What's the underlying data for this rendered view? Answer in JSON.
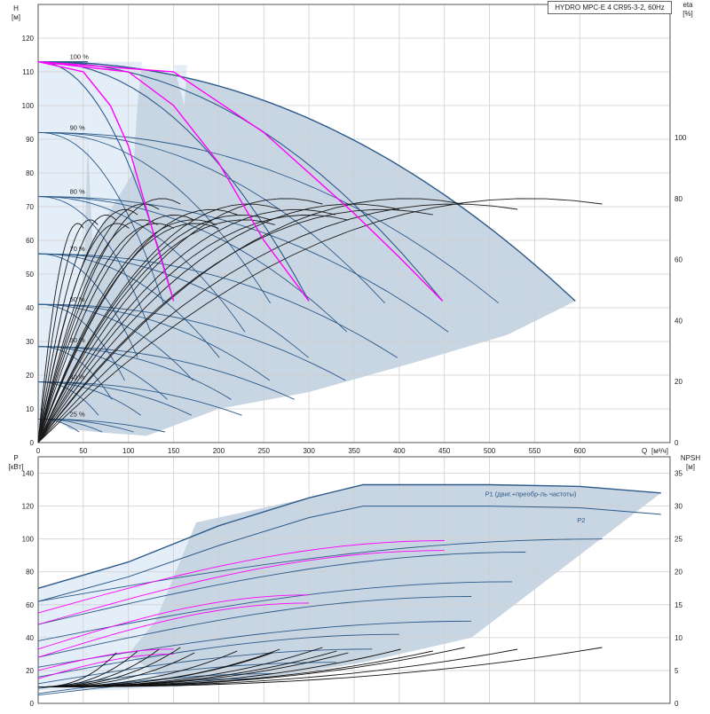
{
  "chart_data": [
    {
      "type": "line",
      "panel": "head-efficiency",
      "title": "HYDRO MPC-E 4 CR95-3-2, 60Hz",
      "ylabel_left": "H",
      "ylabel_left_unit": "[м]",
      "ylabel_right": "eta",
      "ylabel_right_unit": "[%]",
      "xlabel": "Q",
      "xlabel_unit": "[м³/ч]",
      "xlim": [
        0,
        700
      ],
      "ylim": [
        0,
        130
      ],
      "ylim_right": [
        0,
        100
      ],
      "xticks": [
        0,
        50,
        100,
        150,
        200,
        250,
        300,
        350,
        400,
        450,
        500,
        550,
        600
      ],
      "yticks": [
        0,
        10,
        20,
        30,
        40,
        50,
        60,
        70,
        80,
        90,
        100,
        110,
        120
      ],
      "yticks_right": [
        0,
        20,
        40,
        60,
        80,
        100
      ],
      "grid": true,
      "speed_labels": [
        "100 %",
        "90 %",
        "80 %",
        "70 %",
        "60 %",
        "50 %",
        "40 %",
        "25 %"
      ],
      "speed_label_heights": [
        113,
        92,
        73,
        56,
        41,
        29,
        18,
        7
      ],
      "shutoff_heads": [
        113,
        92,
        73,
        56,
        41,
        28.5,
        18,
        7
      ],
      "max_flows_by_pump_count": [
        150,
        300,
        448,
        595
      ],
      "colors": {
        "speed_curve": "#2c5a8a",
        "envelope": "#c8d5e2",
        "system_curve": "#ff00ff",
        "efficiency": "#1a1a1a"
      },
      "system_curves": [
        {
          "x": [
            0,
            50,
            80,
            100,
            130,
            150
          ],
          "y": [
            113,
            110,
            100,
            88,
            60,
            42
          ]
        },
        {
          "x": [
            0,
            100,
            150,
            200,
            250,
            300
          ],
          "y": [
            113,
            110,
            100,
            83,
            60,
            42
          ]
        },
        {
          "x": [
            0,
            150,
            250,
            350,
            400,
            448
          ],
          "y": [
            113,
            110,
            92,
            68,
            55,
            42
          ]
        }
      ]
    },
    {
      "type": "line",
      "panel": "power-npsh",
      "ylabel_left": "P",
      "ylabel_left_unit": "[кВт]",
      "ylabel_right": "NPSH",
      "ylabel_right_unit": "[м]",
      "xlim": [
        0,
        700
      ],
      "ylim": [
        0,
        150
      ],
      "ylim_right": [
        0,
        37.5
      ],
      "yticks": [
        0,
        20,
        40,
        60,
        80,
        100,
        120,
        140
      ],
      "yticks_right": [
        0,
        5,
        10,
        15,
        20,
        25,
        30,
        35
      ],
      "grid": true,
      "legend": [
        "P1 (двиг.+преобр-ль частоты)",
        "P2"
      ],
      "p1_max_curve": {
        "x": [
          0,
          100,
          200,
          300,
          360,
          500,
          600,
          690
        ],
        "y": [
          70,
          86,
          108,
          125,
          133,
          133,
          132,
          128
        ]
      },
      "p2_max_curve": {
        "x": [
          0,
          100,
          200,
          300,
          360,
          500,
          600,
          690
        ],
        "y": [
          62,
          77,
          96,
          113,
          120,
          120,
          119,
          115
        ]
      },
      "npsh_max": [
        9,
        9,
        9,
        9
      ]
    }
  ]
}
